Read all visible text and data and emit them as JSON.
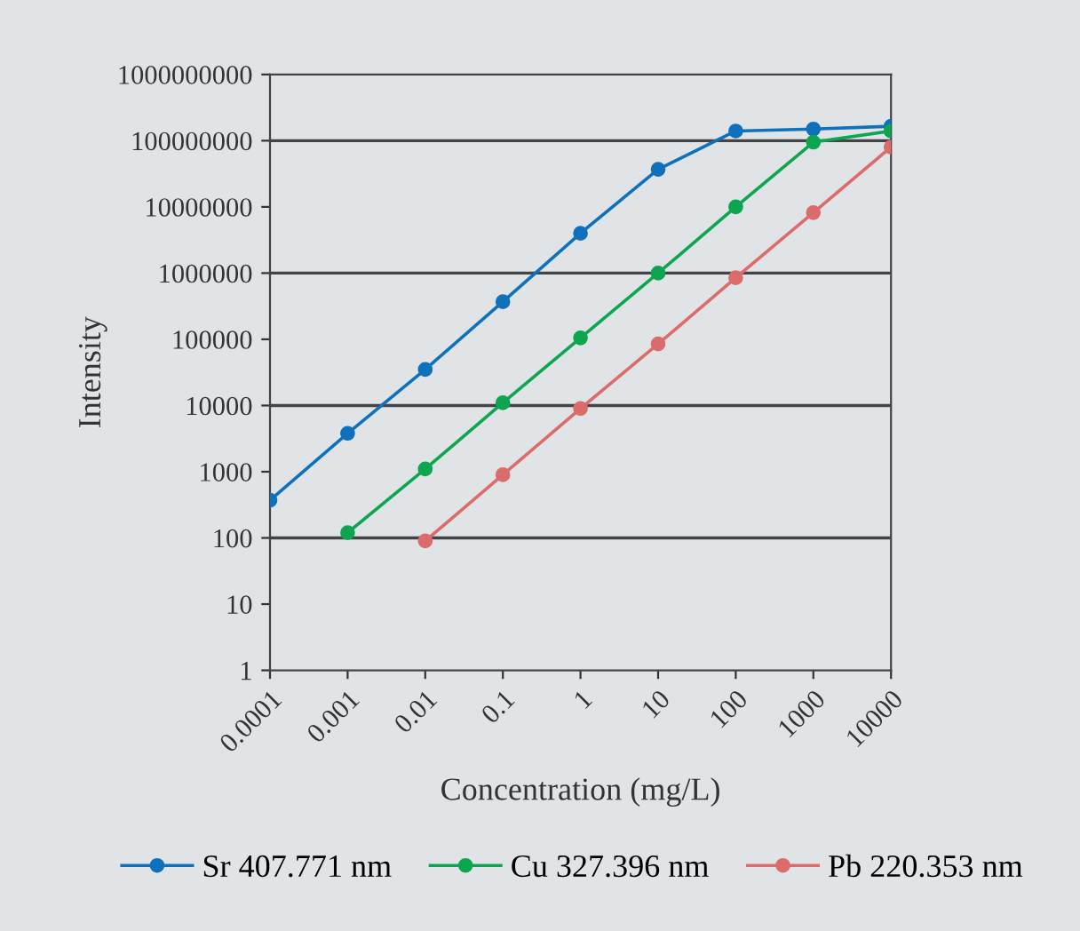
{
  "chart_data": {
    "type": "line",
    "xlabel": "Concentration (mg/L)",
    "ylabel": "Intensity",
    "log": "xy",
    "marker": "circle",
    "legend": "bottom",
    "xlim": [
      0.0001,
      10000
    ],
    "xticks": [
      0.0001,
      0.001,
      0.01,
      0.1,
      1,
      10,
      100,
      1000,
      10000
    ],
    "ylim": [
      1,
      1000000000
    ],
    "yticks": [
      1,
      10,
      100,
      1000,
      10000,
      100000,
      1000000,
      10000000,
      100000000,
      1000000000
    ],
    "series": [
      {
        "name": "Sr 407.771 nm",
        "color": "#0f70bb",
        "x": [
          0.0001,
          0.001,
          0.01,
          0.1,
          1,
          10,
          100,
          1000,
          10000
        ],
        "values": [
          370,
          3800,
          35000,
          370000,
          4000000,
          37000000,
          140000000,
          150000000,
          165000000
        ]
      },
      {
        "name": "Cu 327.396 nm",
        "color": "#0ea550",
        "x": [
          0.001,
          0.01,
          0.1,
          1,
          10,
          100,
          1000,
          10000
        ],
        "values": [
          120,
          1100,
          11000,
          105000,
          1000000,
          10000000,
          95000000,
          140000000
        ]
      },
      {
        "name": "Pb 220.353 nm",
        "color": "#dc6b6b",
        "x": [
          0.01,
          0.1,
          1,
          10,
          100,
          1000,
          10000
        ],
        "values": [
          90,
          900,
          9000,
          85000,
          850000,
          8200000,
          80000000
        ]
      }
    ],
    "ref_lines": [
      {
        "axis": "y",
        "value": 100,
        "color": "#444444"
      },
      {
        "axis": "y",
        "value": 10000,
        "color": "#444444"
      },
      {
        "axis": "y",
        "value": 1000000,
        "color": "#444444"
      },
      {
        "axis": "y",
        "value": 100000000,
        "color": "#444444"
      }
    ]
  }
}
